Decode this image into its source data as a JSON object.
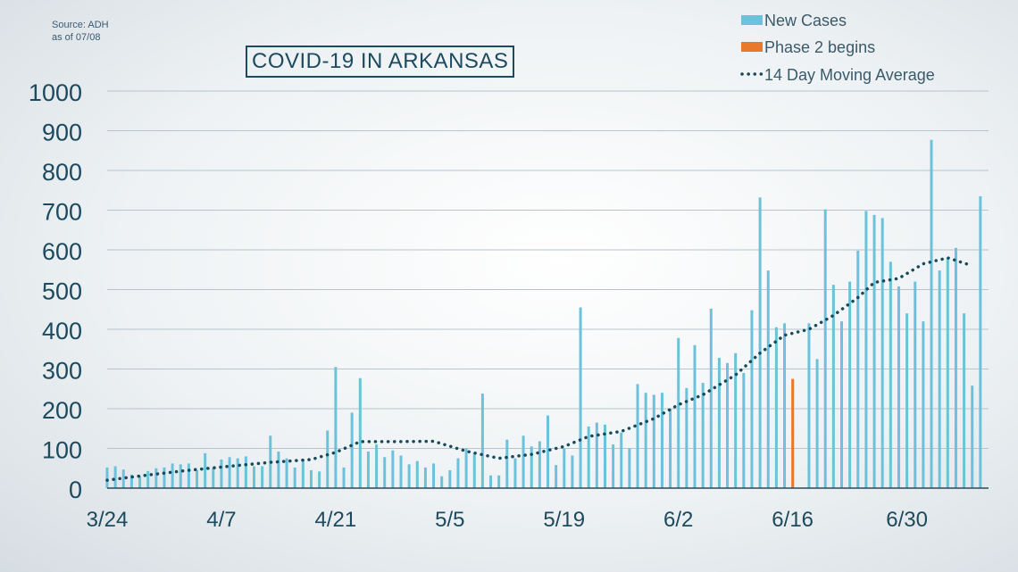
{
  "source": {
    "line1": "Source: ADH",
    "line2": "as of 07/08"
  },
  "chart_data": {
    "type": "bar",
    "title": "COVID-19 IN ARKANSAS",
    "ylim": [
      0,
      1000
    ],
    "y_ticks": [
      0,
      100,
      200,
      300,
      400,
      500,
      600,
      700,
      800,
      900,
      1000
    ],
    "x_tick_labels": [
      {
        "label": "3/24",
        "day": 0
      },
      {
        "label": "4/7",
        "day": 14
      },
      {
        "label": "4/21",
        "day": 28
      },
      {
        "label": "5/5",
        "day": 42
      },
      {
        "label": "5/19",
        "day": 56
      },
      {
        "label": "6/2",
        "day": 70
      },
      {
        "label": "6/16",
        "day": 84
      },
      {
        "label": "6/30",
        "day": 98
      }
    ],
    "grid": true,
    "legend_position": "top-right",
    "colors": {
      "new_cases": "#6cc2da",
      "phase2": "#e8782a",
      "moving_avg": "#174a5a"
    },
    "series": [
      {
        "name": "New Cases",
        "type": "bar",
        "values": [
          52,
          55,
          47,
          34,
          30,
          43,
          50,
          52,
          62,
          60,
          62,
          45,
          88,
          50,
          72,
          78,
          75,
          80,
          55,
          55,
          132,
          92,
          75,
          52,
          72,
          45,
          42,
          145,
          305,
          52,
          190,
          277,
          92,
          110,
          78,
          95,
          82,
          60,
          68,
          52,
          62,
          30,
          45,
          75,
          100,
          90,
          238,
          32,
          32,
          122,
          75,
          132,
          105,
          118,
          183,
          58,
          100,
          82,
          455,
          155,
          165,
          160,
          110,
          140,
          100,
          262,
          240,
          235,
          240,
          200,
          378,
          252,
          360,
          265,
          452,
          328,
          315,
          340,
          290,
          448,
          732,
          548,
          405,
          415,
          0,
          0,
          415,
          325,
          702,
          512,
          420,
          520,
          598,
          698,
          688,
          680,
          570,
          508,
          440,
          520,
          420,
          877,
          548,
          580,
          605,
          440,
          258,
          735
        ]
      },
      {
        "name": "Phase 2 begins",
        "type": "bar",
        "day": 84,
        "value": 275
      },
      {
        "name": "14 Day Moving Average",
        "type": "line",
        "points": [
          [
            0,
            20
          ],
          [
            5,
            33
          ],
          [
            10,
            45
          ],
          [
            15,
            55
          ],
          [
            20,
            65
          ],
          [
            25,
            72
          ],
          [
            28,
            90
          ],
          [
            31,
            117
          ],
          [
            35,
            117
          ],
          [
            40,
            118
          ],
          [
            44,
            93
          ],
          [
            48,
            75
          ],
          [
            52,
            85
          ],
          [
            56,
            105
          ],
          [
            59,
            130
          ],
          [
            63,
            143
          ],
          [
            67,
            175
          ],
          [
            70,
            210
          ],
          [
            73,
            235
          ],
          [
            77,
            285
          ],
          [
            80,
            340
          ],
          [
            83,
            385
          ],
          [
            86,
            400
          ],
          [
            89,
            435
          ],
          [
            92,
            480
          ],
          [
            94,
            518
          ],
          [
            97,
            528
          ],
          [
            100,
            565
          ],
          [
            103,
            580
          ],
          [
            106,
            560
          ]
        ]
      }
    ]
  }
}
